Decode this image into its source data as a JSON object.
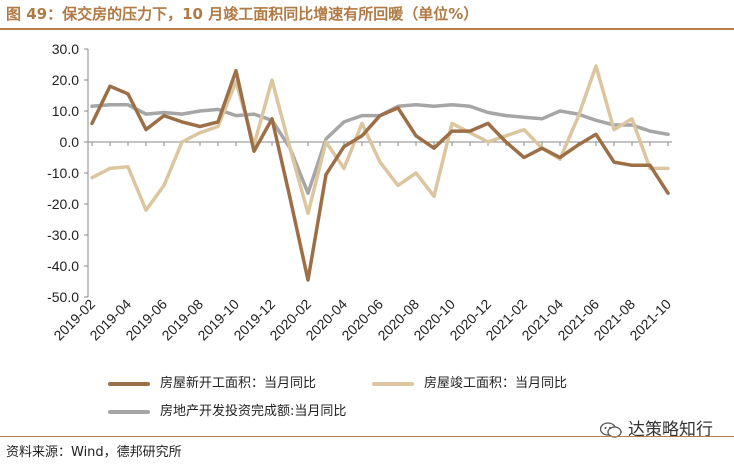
{
  "header": {
    "title": "图 49：保交房的压力下，10 月竣工面积同比增速有所回暖（单位%）"
  },
  "chart_data": {
    "type": "line",
    "x": [
      "2019-02",
      "2019-03",
      "2019-04",
      "2019-05",
      "2019-06",
      "2019-07",
      "2019-08",
      "2019-09",
      "2019-10",
      "2019-11",
      "2019-12",
      "2020-01",
      "2020-02",
      "2020-03",
      "2020-04",
      "2020-05",
      "2020-06",
      "2020-07",
      "2020-08",
      "2020-09",
      "2020-10",
      "2020-11",
      "2020-12",
      "2021-01",
      "2021-02",
      "2021-03",
      "2021-04",
      "2021-05",
      "2021-06",
      "2021-07",
      "2021-08",
      "2021-09",
      "2021-10"
    ],
    "xticks": [
      "2019-02",
      "2019-04",
      "2019-06",
      "2019-08",
      "2019-10",
      "2019-12",
      "2020-02",
      "2020-04",
      "2020-06",
      "2020-08",
      "2020-10",
      "2020-12",
      "2021-02",
      "2021-04",
      "2021-06",
      "2021-08",
      "2021-10"
    ],
    "yticks": [
      "30.0",
      "20.0",
      "10.0",
      "0.0",
      "-10.0",
      "-20.0",
      "-30.0",
      "-40.0",
      "-50.0"
    ],
    "ylim": [
      -50,
      30
    ],
    "grid": false,
    "series": [
      {
        "name": "房屋新开工面积：当月同比",
        "color": "#9c6f47",
        "values": [
          6,
          18,
          15.5,
          4,
          8.5,
          6.5,
          5,
          6.5,
          23,
          -3,
          7.5,
          -18,
          -44.5,
          -10.5,
          -1.5,
          2,
          8.5,
          11,
          2,
          -2,
          3.5,
          3.5,
          6,
          0,
          -5,
          -2,
          -5,
          -1,
          2.5,
          -6.5,
          -7.5,
          -7.5,
          -16.5
        ]
      },
      {
        "name": "房屋竣工面积：当月同比",
        "color": "#dcc6a0",
        "values": [
          -11.5,
          -8.5,
          -8,
          -22,
          -14,
          0,
          3,
          5,
          19.5,
          -1,
          20,
          -2,
          -23,
          0,
          -8.5,
          6,
          -6.5,
          -14,
          -10,
          -17.5,
          6,
          3,
          0,
          2,
          4,
          -2,
          -5.5,
          8,
          24.5,
          4,
          7.5,
          -8.5,
          -8.5
        ]
      },
      {
        "name": "房地产开发投资完成额:当月同比",
        "color": "#a6a6a6",
        "values": [
          11.5,
          12,
          12,
          9,
          9.5,
          9,
          10,
          10.5,
          8.5,
          9,
          7,
          -2,
          -16.5,
          1,
          6.5,
          8.5,
          8.5,
          11.5,
          12,
          11.5,
          12,
          11.5,
          9.5,
          8.5,
          8,
          7.5,
          10,
          9,
          7,
          5.5,
          5.5,
          3.5,
          2.5
        ]
      }
    ]
  },
  "legend": {
    "items": [
      {
        "label": "房屋新开工面积：当月同比",
        "color": "#9c6f47"
      },
      {
        "label": "房屋竣工面积：当月同比",
        "color": "#dcc6a0"
      },
      {
        "label": "房地产开发投资完成额:当月同比",
        "color": "#a6a6a6"
      }
    ]
  },
  "footer": {
    "source": "资料来源：Wind，德邦研究所",
    "brand": "达策略知行",
    "brand_icon": "wechat-icon"
  }
}
